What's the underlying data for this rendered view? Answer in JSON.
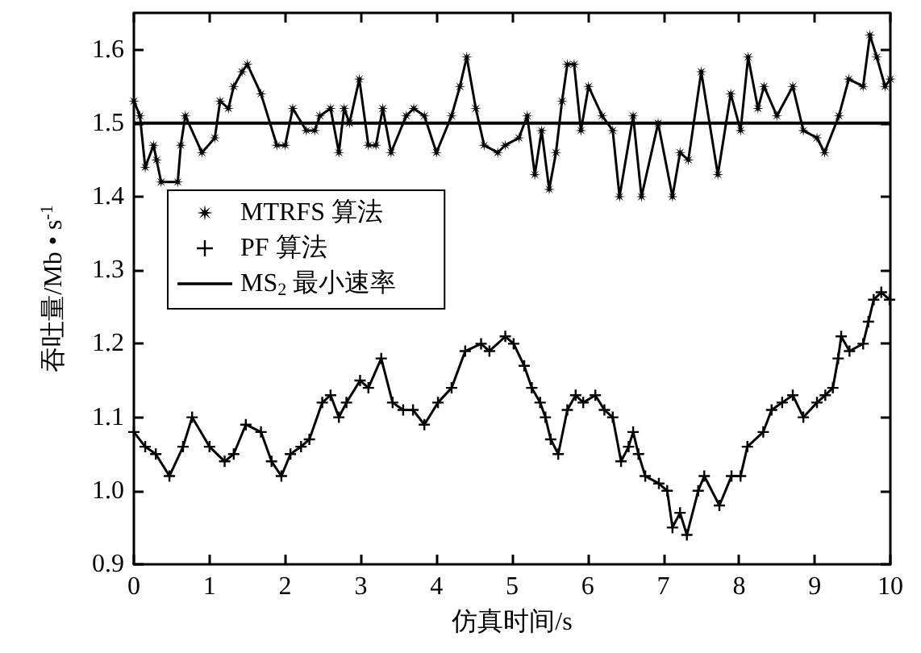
{
  "chart_data": {
    "type": "line",
    "xlabel": "仿真时间/s",
    "ylabel": "吞吐量/Mb • s$^{-1}$",
    "xlim": [
      0,
      10
    ],
    "xticks": [
      0,
      1,
      2,
      3,
      4,
      5,
      6,
      7,
      8,
      9,
      10
    ],
    "ylim": [
      0.9,
      1.65
    ],
    "yticks": [
      0.9,
      {
        "value": 1,
        "label": "1.0"
      },
      1.1,
      1.2,
      1.3,
      1.4,
      1.5,
      1.6
    ],
    "grid": false,
    "legend": "top left",
    "series": [
      {
        "name": "MTRFS 算法",
        "color": "#000000",
        "marker": "star",
        "x": [
          0,
          0.08,
          0.15,
          0.26,
          0.3,
          0.36,
          0.58,
          0.62,
          0.68,
          0.9,
          1.07,
          1.14,
          1.25,
          1.32,
          1.43,
          1.5,
          1.68,
          1.89,
          2.0,
          2.1,
          2.28,
          2.39,
          2.46,
          2.6,
          2.71,
          2.78,
          2.85,
          2.98,
          3.1,
          3.2,
          3.29,
          3.4,
          3.6,
          3.7,
          3.84,
          4.0,
          4.2,
          4.31,
          4.4,
          4.52,
          4.63,
          4.81,
          4.91,
          5.09,
          5.2,
          5.3,
          5.39,
          5.49,
          5.58,
          5.66,
          5.73,
          5.82,
          5.91,
          6.01,
          6.19,
          6.33,
          6.42,
          6.6,
          6.71,
          6.93,
          7.12,
          7.22,
          7.33,
          7.5,
          7.72,
          7.89,
          8.02,
          8.12,
          8.25,
          8.33,
          8.5,
          8.71,
          8.85,
          9.03,
          9.13,
          9.32,
          9.45,
          9.64,
          9.73,
          9.82,
          9.93,
          10.0
        ],
        "values": [
          1.53,
          1.51,
          1.44,
          1.47,
          1.45,
          1.42,
          1.42,
          1.47,
          1.51,
          1.46,
          1.48,
          1.53,
          1.52,
          1.55,
          1.57,
          1.58,
          1.54,
          1.47,
          1.47,
          1.52,
          1.49,
          1.49,
          1.51,
          1.52,
          1.46,
          1.52,
          1.5,
          1.56,
          1.47,
          1.47,
          1.52,
          1.46,
          1.51,
          1.52,
          1.51,
          1.46,
          1.51,
          1.55,
          1.59,
          1.52,
          1.47,
          1.46,
          1.47,
          1.48,
          1.51,
          1.43,
          1.49,
          1.41,
          1.46,
          1.53,
          1.58,
          1.58,
          1.49,
          1.55,
          1.51,
          1.49,
          1.4,
          1.51,
          1.4,
          1.5,
          1.4,
          1.46,
          1.45,
          1.57,
          1.43,
          1.54,
          1.49,
          1.59,
          1.52,
          1.55,
          1.51,
          1.55,
          1.49,
          1.48,
          1.46,
          1.51,
          1.56,
          1.55,
          1.62,
          1.59,
          1.55,
          1.56
        ]
      },
      {
        "name": "PF 算法",
        "color": "#000000",
        "marker": "cross",
        "x": [
          0,
          0.15,
          0.29,
          0.47,
          0.65,
          0.77,
          1.0,
          1.2,
          1.32,
          1.48,
          1.68,
          1.82,
          1.95,
          2.07,
          2.21,
          2.32,
          2.49,
          2.6,
          2.71,
          2.81,
          2.99,
          3.1,
          3.27,
          3.42,
          3.56,
          3.69,
          3.84,
          4.02,
          4.2,
          4.38,
          4.59,
          4.7,
          4.91,
          5.02,
          5.16,
          5.26,
          5.37,
          5.44,
          5.51,
          5.61,
          5.73,
          5.84,
          5.94,
          6.1,
          6.22,
          6.33,
          6.44,
          6.54,
          6.6,
          6.67,
          6.76,
          6.94,
          7.05,
          7.12,
          7.22,
          7.31,
          7.46,
          7.54,
          7.74,
          7.9,
          8.02,
          8.11,
          8.32,
          8.43,
          8.57,
          8.71,
          8.85,
          9.03,
          9.14,
          9.24,
          9.31,
          9.35,
          9.46,
          9.64,
          9.71,
          9.78,
          9.88,
          9.99
        ],
        "values": [
          1.08,
          1.06,
          1.05,
          1.02,
          1.06,
          1.1,
          1.06,
          1.04,
          1.05,
          1.09,
          1.08,
          1.04,
          1.02,
          1.05,
          1.06,
          1.07,
          1.12,
          1.13,
          1.1,
          1.12,
          1.15,
          1.14,
          1.18,
          1.12,
          1.11,
          1.11,
          1.09,
          1.12,
          1.14,
          1.19,
          1.2,
          1.19,
          1.21,
          1.2,
          1.17,
          1.14,
          1.12,
          1.1,
          1.07,
          1.05,
          1.11,
          1.13,
          1.12,
          1.13,
          1.11,
          1.1,
          1.04,
          1.06,
          1.08,
          1.05,
          1.02,
          1.01,
          1.0,
          0.95,
          0.97,
          0.94,
          1.0,
          1.02,
          0.98,
          1.02,
          1.02,
          1.06,
          1.08,
          1.11,
          1.12,
          1.13,
          1.1,
          1.12,
          1.13,
          1.14,
          1.18,
          1.21,
          1.19,
          1.2,
          1.23,
          1.26,
          1.27,
          1.26
        ]
      }
    ],
    "ref_lines": [
      {
        "axis": "y",
        "value": 1.5,
        "label": "MS$_{2}$ 最小速率",
        "color": "#000000"
      }
    ]
  }
}
